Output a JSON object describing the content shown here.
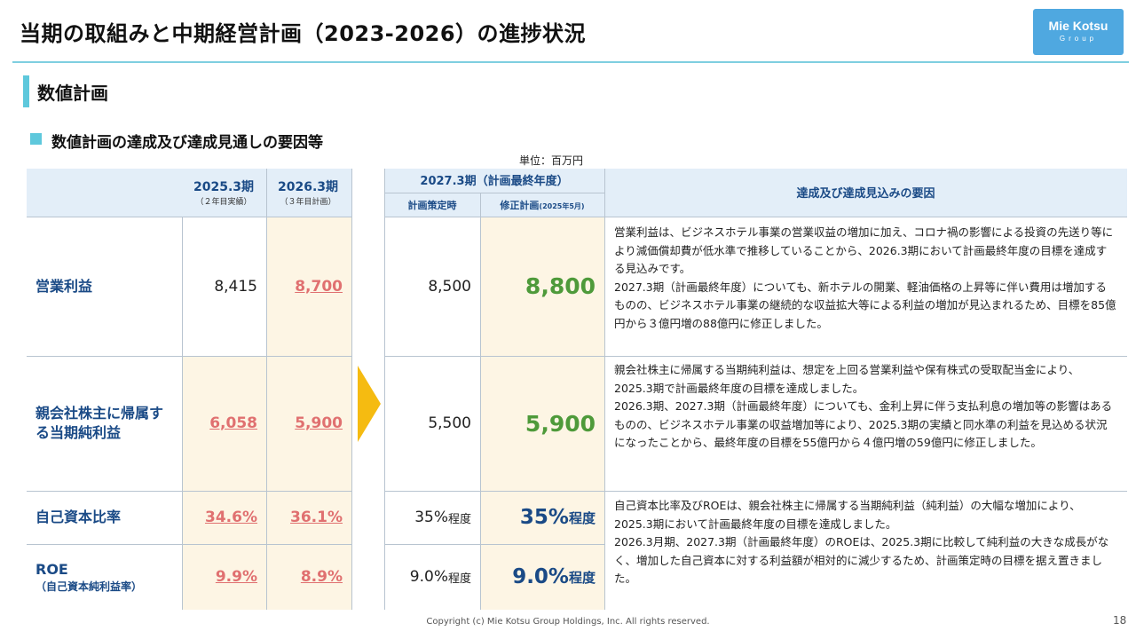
{
  "header": {
    "title": "当期の取組みと中期経営計画（2023-2026）の進捗状況",
    "logo_line1": "Mie Kotsu",
    "logo_line2": "Group"
  },
  "section": {
    "title": "数値計画",
    "subtitle": "数値計画の達成及び達成見通しの要因等",
    "unit": "単位：百万円"
  },
  "table": {
    "col_2025": "2025.3期",
    "col_2025_sub": "（２年目実績）",
    "col_2026": "2026.3期",
    "col_2026_sub": "（３年目計画）",
    "col_2027": "2027.3期（計画最終年度）",
    "col_2027_plan": "計画策定時",
    "col_2027_revised": "修正計画",
    "col_2027_revised_sub": "(2025年5月)",
    "col_reason": "達成及び達成見込みの要因",
    "rows": [
      {
        "label": "営業利益",
        "v2025": "8,415",
        "v2026": "8,700",
        "plan": "8,500",
        "revised": "8,800"
      },
      {
        "label": "親会社株主に帰属する当期純利益",
        "v2025": "6,058",
        "v2026": "5,900",
        "plan": "5,500",
        "revised": "5,900"
      },
      {
        "label": "自己資本比率",
        "v2025": "34.6%",
        "v2026": "36.1%",
        "plan": "35%",
        "plan_suffix": "程度",
        "revised": "35%",
        "revised_suffix": "程度"
      },
      {
        "label": "ROE",
        "label_sub": "（自己資本純利益率）",
        "v2025": "9.9%",
        "v2026": "8.9%",
        "plan": "9.0%",
        "plan_suffix": "程度",
        "revised": "9.0%",
        "revised_suffix": "程度"
      }
    ],
    "reasons": [
      "営業利益は、ビジネスホテル事業の営業収益の増加に加え、コロナ禍の影響による投資の先送り等により減価償却費が低水準で推移していることから、2026.3期において計画最終年度の目標を達成する見込みです。",
      "2027.3期（計画最終年度）についても、新ホテルの開業、軽油価格の上昇等に伴い費用は増加するものの、ビジネスホテル事業の継続的な収益拡大等による利益の増加が見込まれるため、目標を85億円から３億円増の88億円に修正しました。",
      "親会社株主に帰属する当期純利益は、想定を上回る営業利益や保有株式の受取配当金により、2025.3期で計画最終年度の目標を達成しました。",
      "2026.3期、2027.3期（計画最終年度）についても、金利上昇に伴う支払利息の増加等の影響はあるものの、ビジネスホテル事業の収益増加等により、2025.3期の実績と同水準の利益を見込める状況になったことから、最終年度の目標を55億円から４億円増の59億円に修正しました。",
      "自己資本比率及びROEは、親会社株主に帰属する当期純利益（純利益）の大幅な増加により、2025.3期において計画最終年度の目標を達成しました。",
      "2026.3月期、2027.3期（計画最終年度）のROEは、2025.3期に比較して純利益の大きな成長がなく、増加した自己資本に対する利益額が相対的に減少するため、計画策定時の目標を据え置きました。"
    ]
  },
  "footer": {
    "copyright": "Copyright (c) Mie Kotsu Group Holdings, Inc. All rights reserved.",
    "page": "18"
  }
}
